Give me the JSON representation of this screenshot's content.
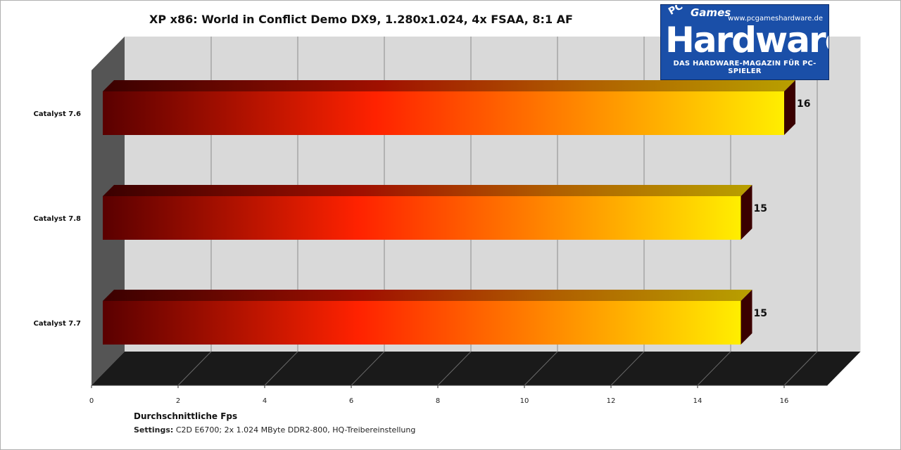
{
  "chart_data": {
    "type": "bar",
    "orientation": "horizontal",
    "title": "XP x86: World in Conflict Demo DX9, 1.280x1.024, 4x FSAA, 8:1 AF",
    "xlabel": "Durchschnittliche Fps",
    "categories": [
      "Catalyst 7.6",
      "Catalyst 7.8",
      "Catalyst 7.7"
    ],
    "values": [
      16,
      15,
      15
    ],
    "value_labels": [
      "16",
      "15",
      "15"
    ],
    "xlim": [
      0,
      17
    ],
    "xticks": [
      0,
      2,
      4,
      6,
      8,
      10,
      12,
      14,
      16
    ],
    "xtick_labels": [
      "0",
      "2",
      "4",
      "6",
      "8",
      "10",
      "12",
      "14",
      "16"
    ],
    "grid": true,
    "style": "3d",
    "legend": "none"
  },
  "settings": {
    "label": "Settings:",
    "text": "C2D E6700; 2x 1.024 MByte DDR2-800, HQ-Treibereinstellung"
  },
  "logo": {
    "pc": "PC",
    "games": "Games",
    "url": "www.pcgameshardware.de",
    "wordmark": "Hardware",
    "tagline": "DAS HARDWARE-MAGAZIN FÜR PC-SPIELER"
  },
  "colors": {
    "bar_start": "#5a0000",
    "bar_mid": "#ff2200",
    "bar_end": "#ffee00",
    "back_wall": "#d9d9d9",
    "floor": "#1a1a1a",
    "side_wall": "#555555"
  }
}
